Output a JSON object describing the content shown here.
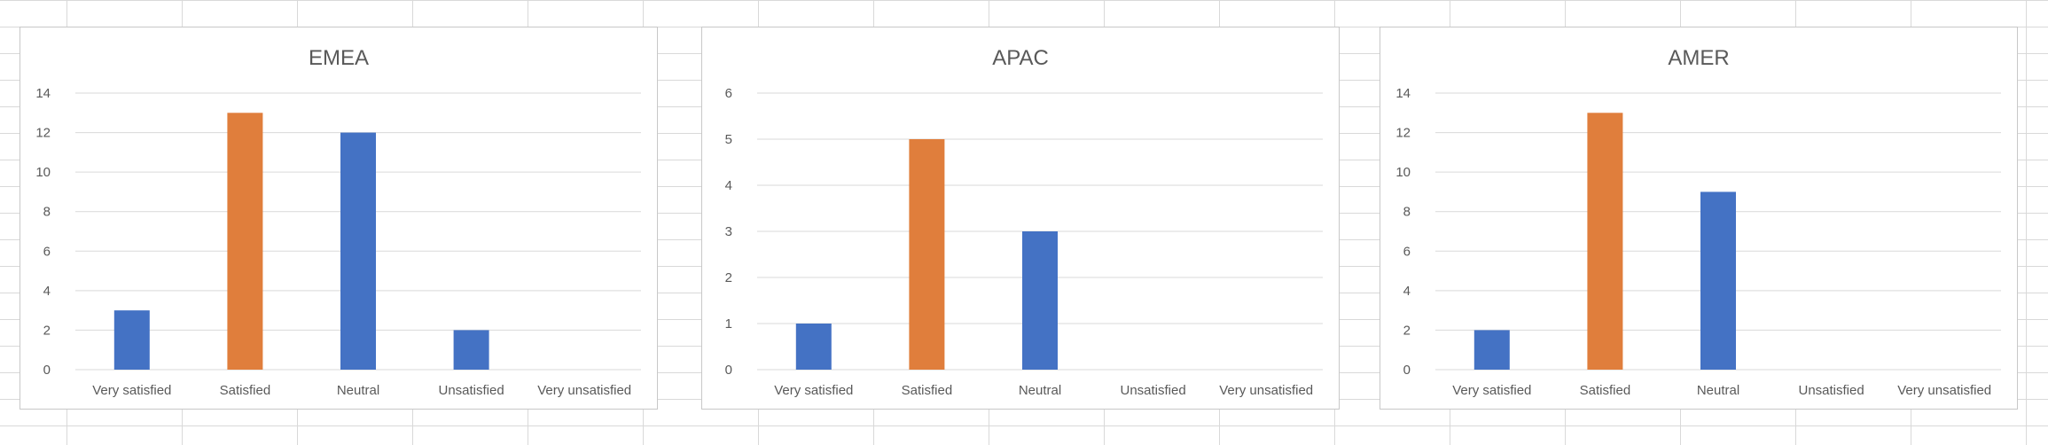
{
  "chart_data": [
    {
      "type": "bar",
      "title": "EMEA",
      "categories": [
        "Very satisfied",
        "Satisfied",
        "Neutral",
        "Unsatisfied",
        "Very unsatisfied"
      ],
      "values": [
        3,
        13,
        12,
        2,
        0
      ],
      "ylim": [
        0,
        14
      ],
      "yticks": [
        0,
        2,
        4,
        6,
        8,
        10,
        12,
        14
      ],
      "grid": true,
      "colors": [
        "#4472C4",
        "#E07E3C",
        "#4472C4",
        "#4472C4",
        "#4472C4"
      ]
    },
    {
      "type": "bar",
      "title": "APAC",
      "categories": [
        "Very satisfied",
        "Satisfied",
        "Neutral",
        "Unsatisfied",
        "Very unsatisfied"
      ],
      "values": [
        1,
        5,
        3,
        0,
        0
      ],
      "ylim": [
        0,
        6
      ],
      "yticks": [
        0,
        1,
        2,
        3,
        4,
        5,
        6
      ],
      "grid": true,
      "colors": [
        "#4472C4",
        "#E07E3C",
        "#4472C4",
        "#4472C4",
        "#4472C4"
      ]
    },
    {
      "type": "bar",
      "title": "AMER",
      "categories": [
        "Very satisfied",
        "Satisfied",
        "Neutral",
        "Unsatisfied",
        "Very unsatisfied"
      ],
      "values": [
        2,
        13,
        9,
        0,
        0
      ],
      "ylim": [
        0,
        14
      ],
      "yticks": [
        0,
        2,
        4,
        6,
        8,
        10,
        12,
        14
      ],
      "grid": true,
      "colors": [
        "#4472C4",
        "#E07E3C",
        "#4472C4",
        "#4472C4",
        "#4472C4"
      ]
    }
  ]
}
